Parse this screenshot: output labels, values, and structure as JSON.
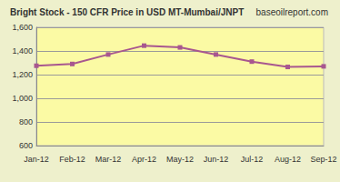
{
  "chart_data": {
    "type": "line",
    "title": "Bright Stock - 150 CFR Price in USD MT-Mumbai/JNPT",
    "subtitle": "baseoilreport.com",
    "categories": [
      "Jan-12",
      "Feb-12",
      "Mar-12",
      "Apr-12",
      "May-12",
      "Jun-12",
      "Jul-12",
      "Aug-12",
      "Sep-12"
    ],
    "values": [
      1275,
      1290,
      1370,
      1445,
      1430,
      1370,
      1310,
      1265,
      1270
    ],
    "color": "#a8578f",
    "marker": "square",
    "ylim": [
      600,
      1600
    ],
    "yticks": [
      600,
      800,
      1000,
      1200,
      1400,
      1600
    ],
    "grid": true
  }
}
